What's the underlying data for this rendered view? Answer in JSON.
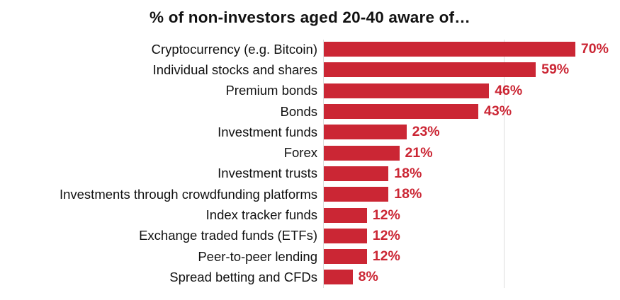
{
  "chart_data": {
    "type": "bar",
    "orientation": "horizontal",
    "title": "% of non-investors aged 20-40 aware of…",
    "categories": [
      "Cryptocurrency (e.g. Bitcoin)",
      "Individual stocks and shares",
      "Premium bonds",
      "Bonds",
      "Investment funds",
      "Forex",
      "Investment trusts",
      "Investments through crowdfunding platforms",
      "Index tracker funds",
      "Exchange traded funds (ETFs)",
      "Peer-to-peer lending",
      "Spread betting and CFDs"
    ],
    "values": [
      70,
      59,
      46,
      43,
      23,
      21,
      18,
      18,
      12,
      12,
      12,
      8
    ],
    "value_labels": [
      "70%",
      "59%",
      "46%",
      "43%",
      "23%",
      "21%",
      "18%",
      "18%",
      "12%",
      "12%",
      "12%",
      "8%"
    ],
    "xlabel": "",
    "ylabel": "",
    "xlim": [
      0,
      82
    ],
    "gridlines_x": [
      50
    ],
    "grid": "single faint vertical gridline at 50% plus axis line at 0%",
    "legend": "none",
    "bar_color": "#cb2634",
    "value_label_color": "#cb2634",
    "category_label_color": "#111111",
    "title_color": "#111111",
    "axis_line_color": "#dddddd",
    "background_color": "#ffffff"
  }
}
